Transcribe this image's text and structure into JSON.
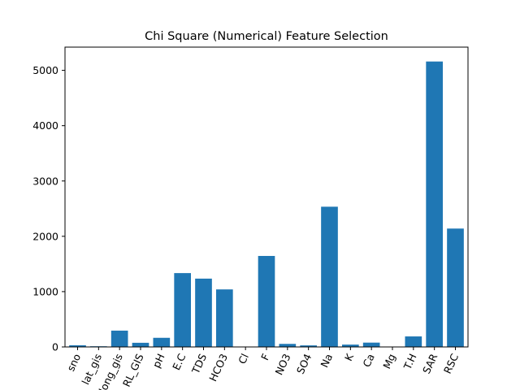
{
  "chart_data": {
    "type": "bar",
    "title": "Chi Square (Numerical) Feature Selection",
    "xlabel": "",
    "ylabel": "",
    "categories": [
      "sno",
      "lat_gis",
      "long_gis",
      "RL_GIS",
      "pH",
      "E.C",
      "TDS",
      "HCO3",
      "Cl",
      "F",
      "NO3",
      "SO4",
      "Na",
      "K",
      "Ca",
      "Mg",
      "T.H",
      "SAR",
      "RSC"
    ],
    "values": [
      30,
      12,
      295,
      75,
      165,
      1335,
      1235,
      1040,
      3,
      1645,
      55,
      28,
      2535,
      42,
      78,
      4,
      190,
      5160,
      2140
    ],
    "ylim": [
      0,
      5420
    ],
    "yticks": [
      0,
      1000,
      2000,
      3000,
      4000,
      5000
    ],
    "bar_color": "#1f77b4",
    "grid": false,
    "legend": "none"
  }
}
